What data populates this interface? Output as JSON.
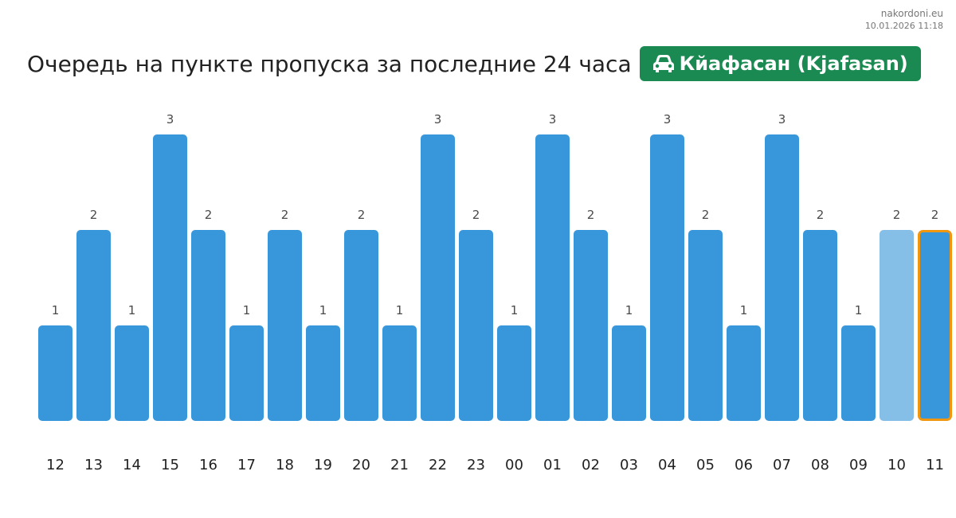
{
  "watermark": {
    "site": "nakordoni.eu",
    "timestamp": "10.01.2026 11:18"
  },
  "header": {
    "title": "Очередь на пункте пропуска за последние 24 часа",
    "station": "Кйафасан (Kjafasan)",
    "station_icon": "car-icon",
    "badge_color": "#1a8a52"
  },
  "chart_data": {
    "type": "bar",
    "title": "Очередь на пункте пропуска за последние 24 часа",
    "xlabel": "",
    "ylabel": "",
    "ylim": [
      0,
      3
    ],
    "grid": false,
    "categories": [
      "12",
      "13",
      "14",
      "15",
      "16",
      "17",
      "18",
      "19",
      "20",
      "21",
      "22",
      "23",
      "00",
      "01",
      "02",
      "03",
      "04",
      "05",
      "06",
      "07",
      "08",
      "09",
      "10",
      "11"
    ],
    "values": [
      1,
      2,
      1,
      3,
      2,
      1,
      2,
      1,
      2,
      1,
      3,
      2,
      1,
      3,
      2,
      1,
      3,
      2,
      1,
      3,
      2,
      1,
      2,
      2
    ],
    "colors": {
      "bar": "#3897db",
      "bar_light": "#85bfe8",
      "current_outline": "#f0960f"
    },
    "light_index": 22,
    "highlight_index": 23
  }
}
